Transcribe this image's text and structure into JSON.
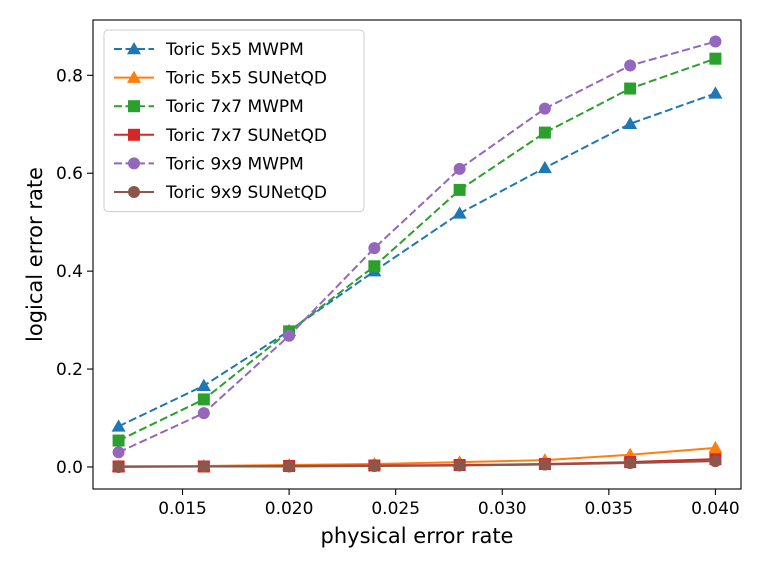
{
  "chart_data": {
    "type": "line",
    "title": "",
    "xlabel": "physical error rate",
    "ylabel": "logical error rate",
    "x": [
      0.012,
      0.016,
      0.02,
      0.024,
      0.028,
      0.032,
      0.036,
      0.04
    ],
    "xlim": [
      0.0108,
      0.0412
    ],
    "ylim": [
      -0.045,
      0.913
    ],
    "xticks": [
      0.015,
      0.02,
      0.025,
      0.03,
      0.035,
      0.04
    ],
    "xtick_labels": [
      "0.015",
      "0.020",
      "0.025",
      "0.030",
      "0.035",
      "0.040"
    ],
    "yticks": [
      0.0,
      0.2,
      0.4,
      0.6,
      0.8
    ],
    "ytick_labels": [
      "0.0",
      "0.2",
      "0.4",
      "0.6",
      "0.8"
    ],
    "grid": false,
    "legend_position": "top-left",
    "series": [
      {
        "name": "Toric 5x5 MWPM",
        "color": "#1f77b4",
        "marker": "triangle",
        "linestyle": "dashed",
        "values": [
          0.083,
          0.166,
          0.278,
          0.4,
          0.518,
          0.611,
          0.701,
          0.763
        ]
      },
      {
        "name": "Toric 5x5 SUNetQD",
        "color": "#ff7f0e",
        "marker": "triangle",
        "linestyle": "solid",
        "values": [
          0.001,
          0.002,
          0.004,
          0.006,
          0.01,
          0.014,
          0.025,
          0.039
        ]
      },
      {
        "name": "Toric 7x7 MWPM",
        "color": "#2ca02c",
        "marker": "square",
        "linestyle": "dashed",
        "values": [
          0.054,
          0.138,
          0.277,
          0.41,
          0.566,
          0.683,
          0.773,
          0.834
        ]
      },
      {
        "name": "Toric 7x7 SUNetQD",
        "color": "#d62728",
        "marker": "square",
        "linestyle": "solid",
        "values": [
          0.001,
          0.001,
          0.002,
          0.003,
          0.004,
          0.006,
          0.01,
          0.016
        ]
      },
      {
        "name": "Toric 9x9 MWPM",
        "color": "#9467bd",
        "marker": "circle",
        "linestyle": "dashed",
        "values": [
          0.03,
          0.11,
          0.268,
          0.447,
          0.609,
          0.732,
          0.82,
          0.869
        ]
      },
      {
        "name": "Toric 9x9 SUNetQD",
        "color": "#8c564b",
        "marker": "circle",
        "linestyle": "solid",
        "values": [
          0.0,
          0.001,
          0.001,
          0.002,
          0.003,
          0.005,
          0.008,
          0.012
        ]
      }
    ]
  }
}
